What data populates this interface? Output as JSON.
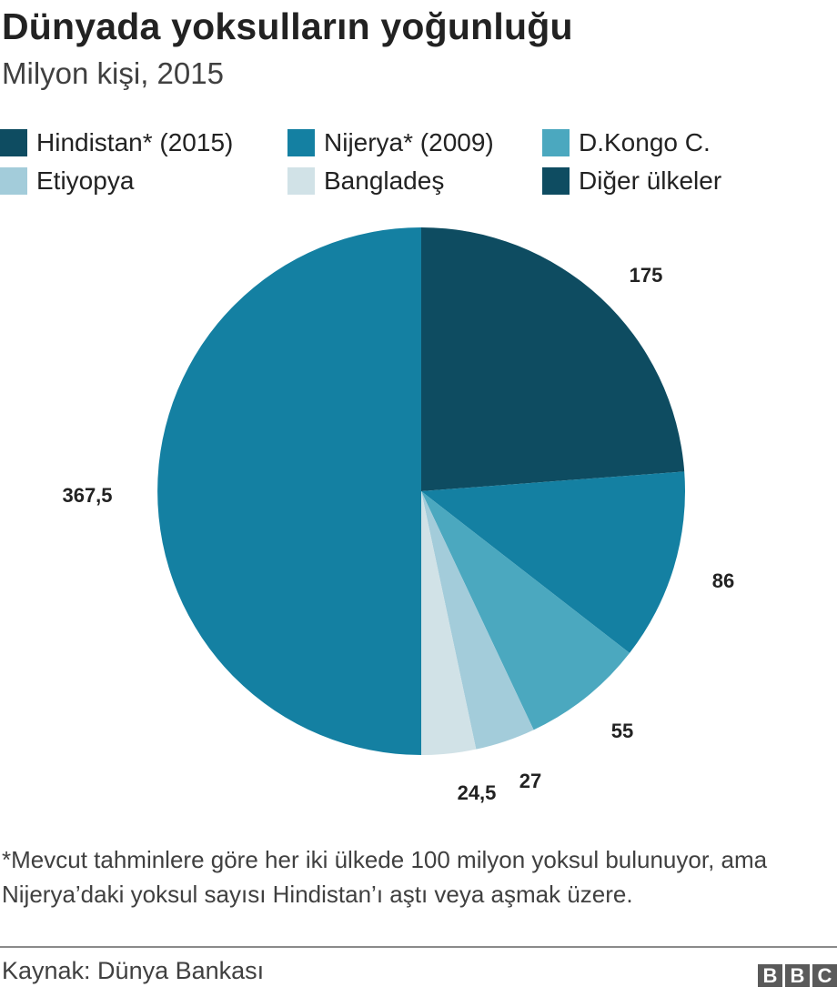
{
  "header": {
    "title": "Dünyada yoksulların yoğunluğu",
    "subtitle": "Milyon kişi, 2015"
  },
  "legend": [
    {
      "label": "Hindistan* (2015)",
      "color": "#0e4c61"
    },
    {
      "label": "Nijerya* (2009)",
      "color": "#1480a2"
    },
    {
      "label": "D.Kongo C.",
      "color": "#4ba8bf"
    },
    {
      "label": "Etiyopya",
      "color": "#a3ccda"
    },
    {
      "label": "Bangladeş",
      "color": "#d1e2e7"
    },
    {
      "label": "Diğer ülkeler",
      "color": "#0e4c61"
    }
  ],
  "chart_data": {
    "type": "pie",
    "slices": [
      {
        "label": "175",
        "value": 175,
        "color": "#0e4c61"
      },
      {
        "label": "86",
        "value": 86,
        "color": "#1480a2"
      },
      {
        "label": "55",
        "value": 55,
        "color": "#4ba8bf"
      },
      {
        "label": "27",
        "value": 27,
        "color": "#a3ccda"
      },
      {
        "label": "24,5",
        "value": 24.5,
        "color": "#d1e2e7"
      },
      {
        "label": "367,5",
        "value": 367.5,
        "color": "#1480a2"
      }
    ]
  },
  "footnote": "*Mevcut tahminlere göre her iki ülkede 100 milyon yoksul bulunuyor, ama Nijerya’daki yoksul sayısı Hindistan’ı aştı veya aşmak üzere.",
  "footer": {
    "source": "Kaynak: Dünya Bankası",
    "logo_letters": [
      "B",
      "B",
      "C"
    ]
  }
}
